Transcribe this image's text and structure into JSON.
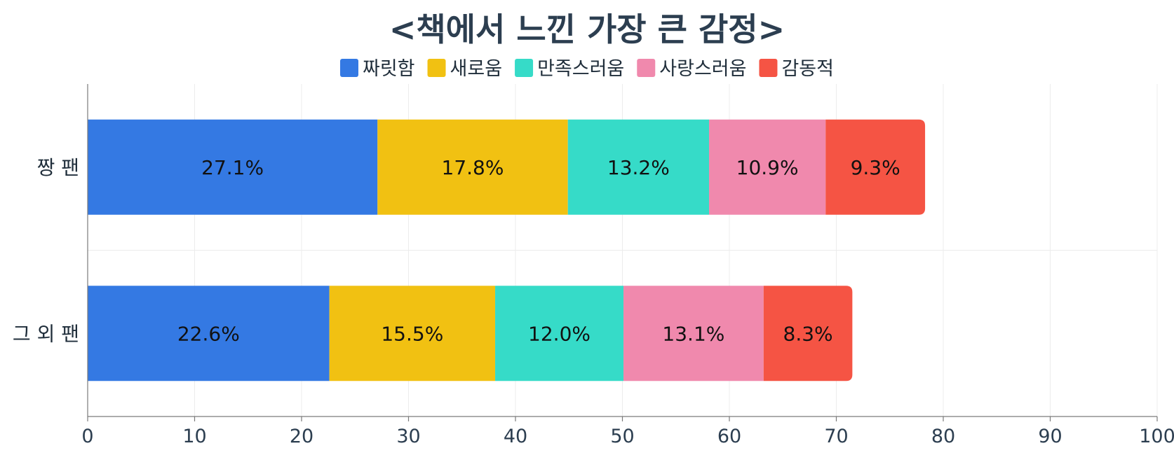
{
  "chart_data": {
    "type": "bar",
    "orientation": "horizontal",
    "stacked": true,
    "title": "<책에서 느낀 가장 큰 감정>",
    "xlabel": "",
    "ylabel": "",
    "categories": [
      "짱 팬",
      "그 외 팬"
    ],
    "series": [
      {
        "name": "짜릿함",
        "values": [
          27.1,
          22.6
        ],
        "color": "#3479e3"
      },
      {
        "name": "새로움",
        "values": [
          17.8,
          15.5
        ],
        "color": "#f1c112"
      },
      {
        "name": "만족스러움",
        "values": [
          13.2,
          12.0
        ],
        "color": "#36dbc8"
      },
      {
        "name": "사랑스러움",
        "values": [
          10.9,
          13.1
        ],
        "color": "#f089ad"
      },
      {
        "name": "감동적",
        "values": [
          9.3,
          8.3
        ],
        "color": "#f55444"
      }
    ],
    "data_labels": [
      [
        "27.1%",
        "22.6%"
      ],
      [
        "17.8%",
        "15.5%"
      ],
      [
        "13.2%",
        "12.0%"
      ],
      [
        "10.9%",
        "13.1%"
      ],
      [
        "9.3%",
        "8.3%"
      ]
    ],
    "xlim": [
      0,
      100
    ],
    "xticks": [
      "0",
      "10",
      "20",
      "30",
      "40",
      "50",
      "60",
      "70",
      "80",
      "90",
      "100"
    ],
    "legend_position": "top-center",
    "grid": true
  }
}
